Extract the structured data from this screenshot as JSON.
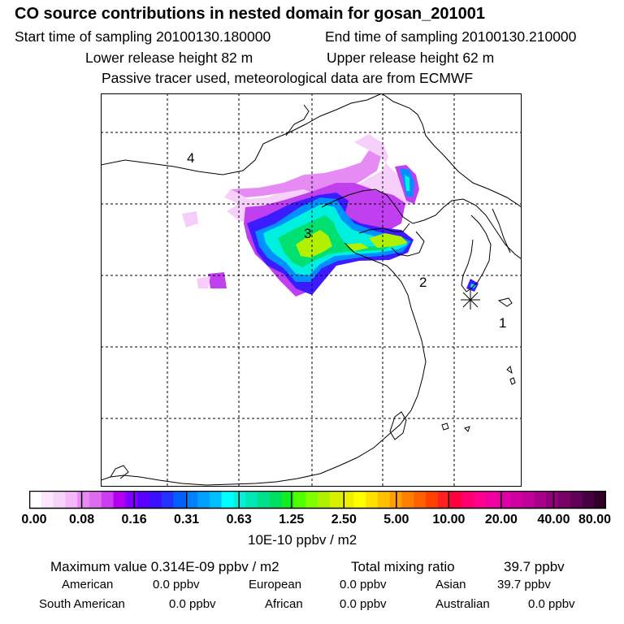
{
  "header": {
    "title": "CO  source contributions in nested domain for gosan_201001",
    "start_time": "Start time of sampling 20100130.180000",
    "end_time": "End time of sampling 20100130.210000",
    "lower_height": "Lower release height   82 m",
    "upper_height": "Upper release height   62 m",
    "note": "Passive tracer used, meteorological data are from ECMWF"
  },
  "map": {
    "region_labels": [
      "1",
      "2",
      "3",
      "4"
    ],
    "receptor_marker": "asterisk-icon",
    "colors": {
      "coast": "#000000",
      "grid": "#000000"
    }
  },
  "colorbar": {
    "tick_labels": [
      "0.00",
      "0.08",
      "0.16",
      "0.31",
      "0.63",
      "1.25",
      "2.50",
      "5.00",
      "10.00",
      "20.00",
      "40.00",
      "80.00"
    ],
    "units": "10E-10 ppbv / m2",
    "colors": [
      "#ffffff",
      "#fce6fc",
      "#f9d2fb",
      "#f4b8f8",
      "#e88af4",
      "#df6cf0",
      "#cc3cf0",
      "#b400f0",
      "#8000ff",
      "#5a00ff",
      "#3c10ff",
      "#2233ff",
      "#0060ff",
      "#0080ff",
      "#00a0ff",
      "#00c0ff",
      "#00ffff",
      "#00f0d8",
      "#00e6b4",
      "#00e08c",
      "#00e060",
      "#10f020",
      "#50ff00",
      "#80ff00",
      "#b0f000",
      "#d8f000",
      "#eef000",
      "#ffff00",
      "#ffe000",
      "#ffc000",
      "#ffa000",
      "#ff8000",
      "#ff6000",
      "#ff4000",
      "#ff2020",
      "#ff0040",
      "#ff0070",
      "#ff0090",
      "#f000a0",
      "#e000a8",
      "#d000a0",
      "#c00098",
      "#a80088",
      "#900078",
      "#780068",
      "#600058",
      "#480040",
      "#300028"
    ]
  },
  "summary": {
    "max_label": "Maximum value  0.314E-09 ppbv / m2",
    "total_label": "Total mixing ratio",
    "total_value": "39.7 ppbv",
    "regions": [
      {
        "name": "American",
        "value": "0.0 ppbv"
      },
      {
        "name": "European",
        "value": "0.0 ppbv"
      },
      {
        "name": "Asian",
        "value": "39.7 ppbv"
      },
      {
        "name": "South American",
        "value": "0.0 ppbv"
      },
      {
        "name": "African",
        "value": "0.0 ppbv"
      },
      {
        "name": "Australian",
        "value": "0.0 ppbv"
      }
    ]
  }
}
